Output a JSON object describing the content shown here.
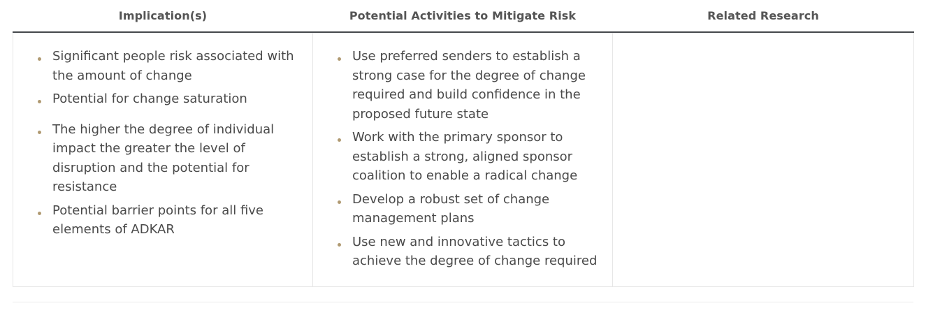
{
  "table": {
    "headers": [
      "Implication(s)",
      "Potential Activities to Mitigate Risk",
      "Related Research"
    ],
    "implications": [
      "Significant people risk associated with the amount of change",
      "Potential for change saturation",
      "The higher the degree of individual impact the greater the level of disruption and the potential for resistance",
      "Potential barrier points for all five elements of ADKAR"
    ],
    "activities": [
      "Use preferred senders to establish a strong case for the degree of change required and build confidence in the proposed future state",
      "Work with the primary sponsor to establish a strong, aligned sponsor coalition to enable a radical change",
      "Develop a robust set of change management plans",
      "Use new and innovative tactics to achieve the degree of change required"
    ],
    "related_research": []
  },
  "colors": {
    "bullet": "#b09a72",
    "header_rule": "#45484c",
    "cell_border": "#e6e6e6",
    "text": "#4a4a4a"
  }
}
